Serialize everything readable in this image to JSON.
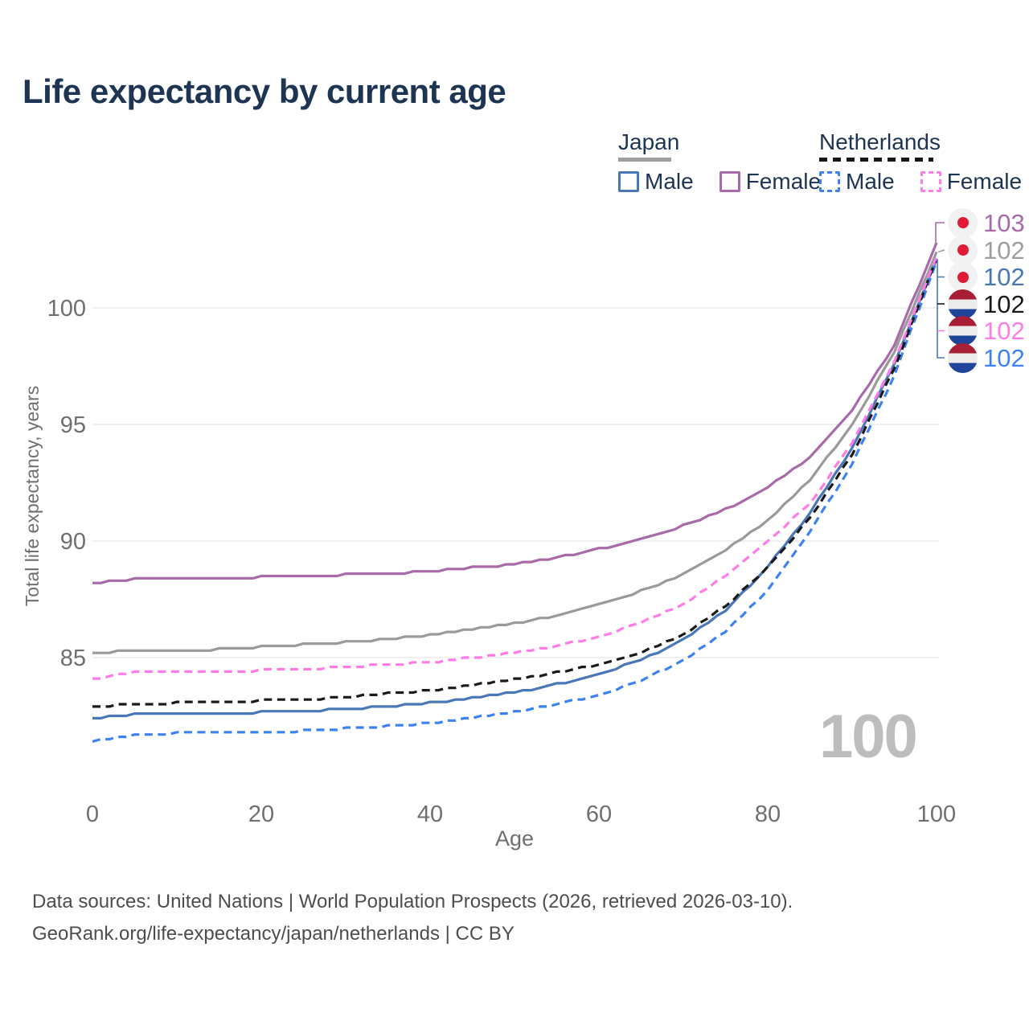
{
  "title": "Life expectancy by current age",
  "legend": {
    "japan": {
      "label": "Japan",
      "male": "Male",
      "female": "Female"
    },
    "netherlands": {
      "label": "Netherlands",
      "male": "Male",
      "female": "Female"
    }
  },
  "watermark": "100",
  "footer": {
    "line1": "Data sources: United Nations | World Population Prospects (2026, retrieved 2026-03-10).",
    "line2": "GeoRank.org/life-expectancy/japan/netherlands | CC BY"
  },
  "chart_data": {
    "type": "line",
    "title": "Life expectancy by current age",
    "xlabel": "Age",
    "ylabel": "Total life expectancy, years",
    "xlim": [
      0,
      100
    ],
    "ylim": [
      81,
      103
    ],
    "x_ticks": [
      0,
      20,
      40,
      60,
      80,
      100
    ],
    "y_ticks": [
      85,
      90,
      95,
      100
    ],
    "grid": "horizontal-only",
    "legend_position": "top-right",
    "ages": [
      0,
      5,
      10,
      15,
      20,
      25,
      30,
      35,
      40,
      45,
      50,
      55,
      60,
      65,
      70,
      75,
      80,
      85,
      90,
      95,
      100
    ],
    "series": [
      {
        "id": "japan-total",
        "name": "Japan Total",
        "country": "Japan",
        "group": "Total",
        "style": "solid",
        "color": "#9a9a9a",
        "values": [
          85.2,
          85.3,
          85.3,
          85.35,
          85.45,
          85.55,
          85.65,
          85.8,
          85.95,
          86.2,
          86.45,
          86.8,
          87.25,
          87.85,
          88.6,
          89.6,
          90.9,
          92.6,
          95.0,
          98.1,
          102.4
        ]
      },
      {
        "id": "japan-male",
        "name": "Japan Male",
        "country": "Japan",
        "group": "Male",
        "style": "solid",
        "color": "#4a77b8",
        "values": [
          82.4,
          82.55,
          82.6,
          82.6,
          82.65,
          82.7,
          82.8,
          82.9,
          83.05,
          83.25,
          83.5,
          83.85,
          84.3,
          84.9,
          85.75,
          87.0,
          88.9,
          91.2,
          94.0,
          97.6,
          102.1
        ]
      },
      {
        "id": "netherlands-male",
        "name": "Netherlands Male",
        "country": "Netherlands",
        "group": "Male",
        "style": "dashed",
        "color": "#3d82f4",
        "values": [
          81.4,
          81.7,
          81.75,
          81.8,
          81.8,
          81.85,
          81.95,
          82.05,
          82.2,
          82.4,
          82.65,
          83.0,
          83.4,
          84.0,
          84.9,
          86.1,
          87.9,
          90.4,
          93.3,
          97.1,
          102.0
        ]
      },
      {
        "id": "netherlands-total",
        "name": "Netherlands Total",
        "country": "Netherlands",
        "group": "Total",
        "style": "dashed",
        "color": "#1a1a1a",
        "values": [
          82.9,
          83.0,
          83.05,
          83.1,
          83.15,
          83.2,
          83.3,
          83.45,
          83.6,
          83.8,
          84.05,
          84.35,
          84.7,
          85.2,
          86.0,
          87.2,
          88.85,
          91.0,
          93.7,
          97.4,
          102.1
        ]
      },
      {
        "id": "netherlands-female",
        "name": "Netherlands Female",
        "country": "Netherlands",
        "group": "Female",
        "style": "dashed",
        "color": "#ff7ce6",
        "values": [
          84.1,
          84.35,
          84.4,
          84.4,
          84.45,
          84.5,
          84.6,
          84.7,
          84.8,
          85.0,
          85.2,
          85.5,
          85.9,
          86.5,
          87.3,
          88.5,
          90.0,
          91.6,
          94.2,
          97.7,
          102.2
        ]
      },
      {
        "id": "japan-female",
        "name": "Japan Female",
        "country": "Japan",
        "group": "Female",
        "style": "solid",
        "color": "#a86aa8",
        "values": [
          88.2,
          88.35,
          88.4,
          88.4,
          88.45,
          88.5,
          88.55,
          88.6,
          88.7,
          88.85,
          89.0,
          89.3,
          89.65,
          90.1,
          90.65,
          91.35,
          92.3,
          93.6,
          95.6,
          98.4,
          102.8
        ]
      }
    ],
    "end_labels": [
      {
        "flag": "jp",
        "country": "Japan",
        "text": "103",
        "color": "#a86aa8",
        "series": "japan-female"
      },
      {
        "flag": "jp",
        "country": "Japan",
        "text": "102",
        "color": "#9e9e9e",
        "series": "japan-total"
      },
      {
        "flag": "jp",
        "country": "Japan",
        "text": "102",
        "color": "#4a77b8",
        "series": "japan-male"
      },
      {
        "flag": "nl",
        "country": "Netherlands",
        "text": "102",
        "color": "#1a1a1a",
        "series": "netherlands-total"
      },
      {
        "flag": "nl",
        "country": "Netherlands",
        "text": "102",
        "color": "#ff7ce6",
        "series": "netherlands-female"
      },
      {
        "flag": "nl",
        "country": "Netherlands",
        "text": "102",
        "color": "#3d82f4",
        "series": "netherlands-male"
      }
    ]
  },
  "colors": {
    "title": "#1d3553",
    "axis_text": "#6f6f6f",
    "gridline": "#e7e7e7",
    "watermark": "#bdbdbd",
    "footer": "#4d4d4d"
  }
}
